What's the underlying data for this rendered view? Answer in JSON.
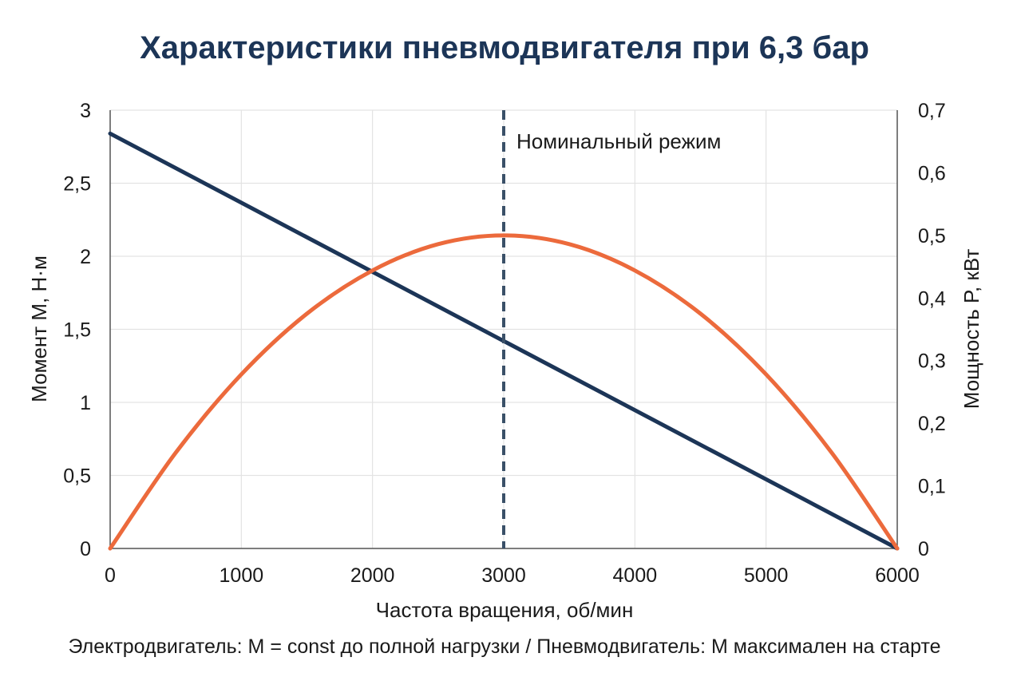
{
  "chart_data": {
    "type": "line",
    "title": "Характеристики пневмодвигателя при 6,3 бар",
    "xlabel": "Частота вращения, об/мин",
    "ylabel_left": "Момент M, Н·м",
    "ylabel_right": "Мощность P, кВт",
    "xlim": [
      0,
      6000
    ],
    "ylim_left": [
      0,
      3
    ],
    "ylim_right": [
      0,
      0.7
    ],
    "x_ticks": [
      "0",
      "1000",
      "2000",
      "3000",
      "4000",
      "5000",
      "6000"
    ],
    "y_left_ticks": [
      "0",
      "0,5",
      "1",
      "1,5",
      "2",
      "2,5",
      "3"
    ],
    "y_right_ticks": [
      "0",
      "0,1",
      "0,2",
      "0,3",
      "0,4",
      "0,5",
      "0,6",
      "0,7"
    ],
    "grid": true,
    "series": [
      {
        "axis": "left",
        "color": "#1c3557",
        "x": [
          0,
          6000
        ],
        "y": [
          2.84,
          0
        ]
      },
      {
        "axis": "right",
        "color": "#ec6a3c",
        "x": [
          0,
          500,
          1000,
          1500,
          2000,
          2500,
          3000,
          3500,
          4000,
          4500,
          5000,
          5500,
          6000
        ],
        "y": [
          0,
          0.153,
          0.278,
          0.375,
          0.444,
          0.486,
          0.5,
          0.486,
          0.444,
          0.375,
          0.278,
          0.153,
          0
        ]
      }
    ],
    "annotations": [
      {
        "type": "vline",
        "x": 3000,
        "style": "dashed",
        "color": "#3a5068",
        "label": "Номинальный режим"
      }
    ]
  },
  "footnote": "Электродвигатель: M = const до полной нагрузки / Пневмодвигатель: M максимален на старте"
}
